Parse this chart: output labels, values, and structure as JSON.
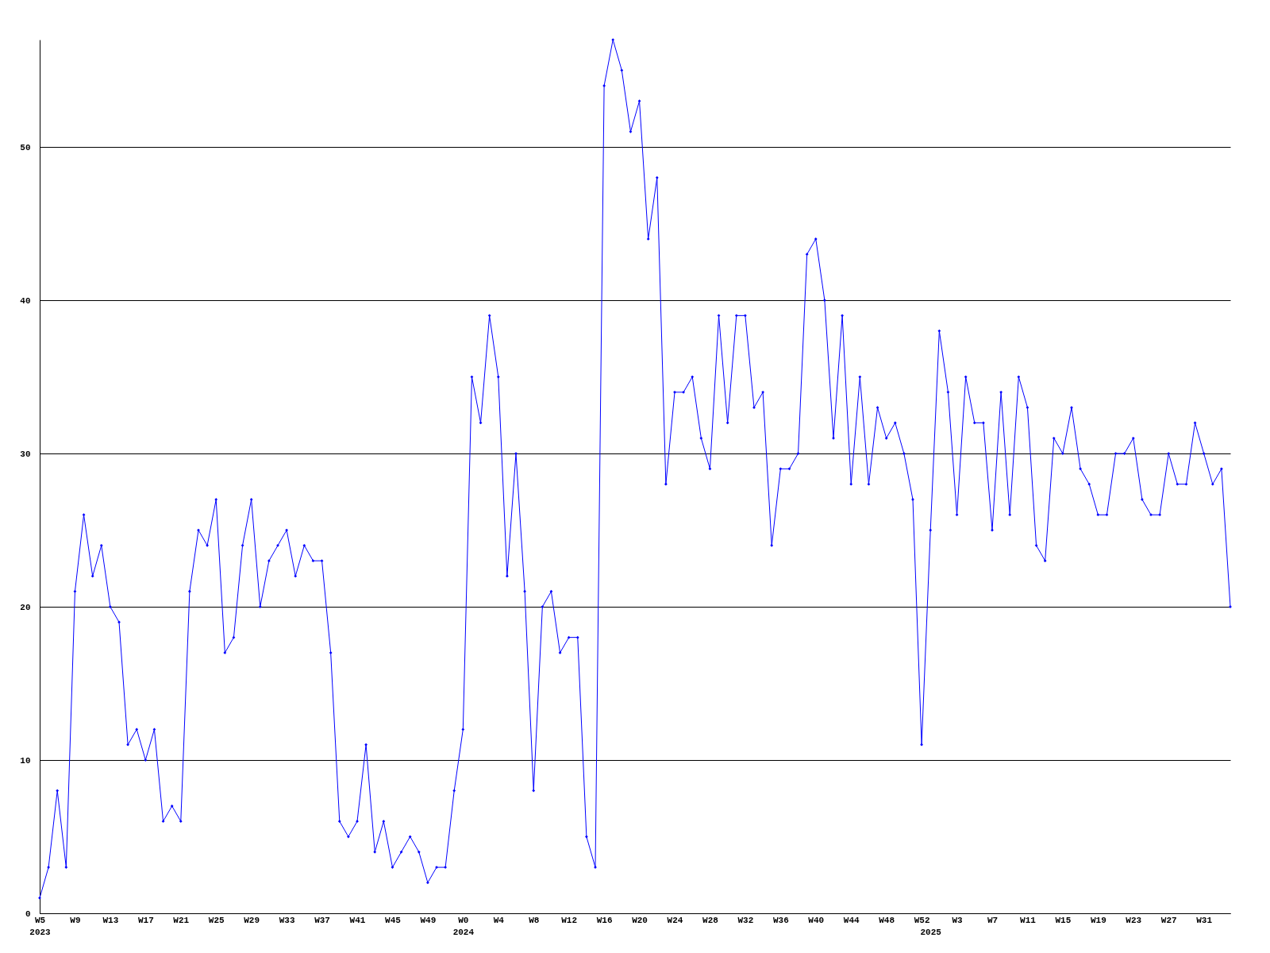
{
  "chart_data": {
    "type": "line",
    "categories": [
      "W5\n2023",
      null,
      null,
      null,
      "W9",
      null,
      null,
      null,
      "W13",
      null,
      null,
      null,
      "W17",
      null,
      null,
      null,
      "W21",
      null,
      null,
      null,
      "W25",
      null,
      null,
      null,
      "W29",
      null,
      null,
      null,
      "W33",
      null,
      null,
      null,
      "W37",
      null,
      null,
      null,
      "W41",
      null,
      null,
      null,
      "W45",
      null,
      null,
      null,
      "W49",
      null,
      null,
      null,
      "W0\n2024",
      null,
      null,
      null,
      "W4",
      null,
      null,
      null,
      "W8",
      null,
      null,
      null,
      "W12",
      null,
      null,
      null,
      "W16",
      null,
      null,
      null,
      "W20",
      null,
      null,
      null,
      "W24",
      null,
      null,
      null,
      "W28",
      null,
      null,
      null,
      "W32",
      null,
      null,
      null,
      "W36",
      null,
      null,
      null,
      "W40",
      null,
      null,
      null,
      "W44",
      null,
      null,
      null,
      "W48",
      null,
      null,
      null,
      "W52",
      "\n2025",
      null,
      null,
      "W3",
      null,
      null,
      null,
      "W7",
      null,
      null,
      null,
      "W11",
      null,
      null,
      null,
      "W15",
      null,
      null,
      null,
      "W19",
      null,
      null,
      null,
      "W23",
      null,
      null,
      null,
      "W27",
      null,
      null,
      null,
      "W31",
      null,
      null,
      null
    ],
    "series": [
      {
        "color": "#0000ff",
        "values": [
          1,
          3,
          8,
          3,
          21,
          26,
          22,
          24,
          20,
          19,
          11,
          12,
          10,
          12,
          6,
          7,
          6,
          21,
          25,
          24,
          27,
          17,
          18,
          24,
          27,
          20,
          23,
          24,
          25,
          22,
          24,
          23,
          23,
          17,
          6,
          5,
          6,
          11,
          4,
          6,
          3,
          4,
          5,
          4,
          2,
          3,
          3,
          8,
          12,
          35,
          32,
          39,
          35,
          22,
          30,
          21,
          8,
          20,
          21,
          17,
          18,
          18,
          5,
          3,
          54,
          57,
          55,
          51,
          53,
          44,
          48,
          28,
          34,
          34,
          35,
          31,
          29,
          39,
          32,
          39,
          39,
          33,
          34,
          24,
          29,
          29,
          30,
          43,
          44,
          40,
          31,
          39,
          28,
          35,
          28,
          33,
          31,
          32,
          30,
          27,
          11,
          25,
          38,
          34,
          26,
          35,
          32,
          32,
          25,
          34,
          26,
          35,
          33,
          24,
          23,
          31,
          30,
          33,
          29,
          28,
          26,
          26,
          30,
          30,
          31,
          27,
          26,
          26,
          30,
          28,
          28,
          32,
          30,
          28,
          29,
          20
        ]
      }
    ],
    "ylim": [
      0,
      57
    ],
    "yticks": [
      0,
      10,
      20,
      30,
      40,
      50
    ],
    "grid": "y",
    "marker": "diamond",
    "line_style": "solid"
  }
}
